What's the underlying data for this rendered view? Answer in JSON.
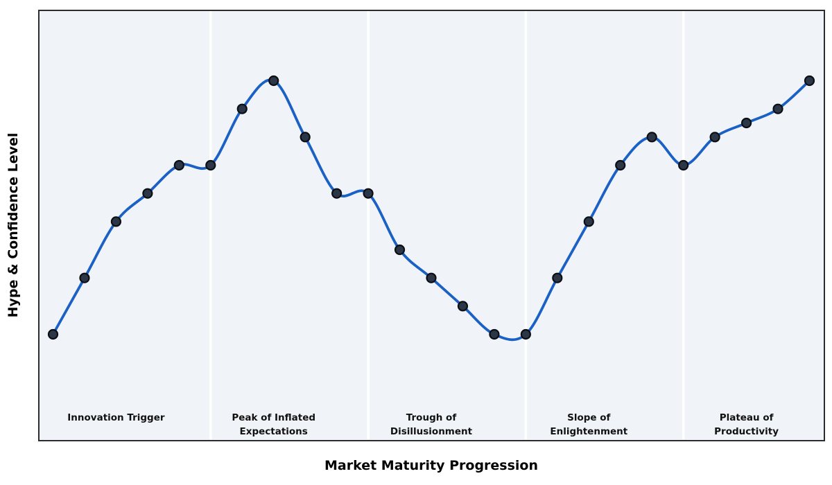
{
  "chart_data": {
    "type": "line",
    "title": "",
    "xlabel": "Market Maturity Progression",
    "ylabel": "Hype & Confidence Level",
    "x": [
      0,
      1,
      2,
      3,
      4,
      5,
      6,
      7,
      8,
      9,
      10,
      11,
      12,
      13,
      14,
      15,
      16,
      17,
      18,
      19,
      20,
      21,
      22,
      23,
      24
    ],
    "values": [
      20,
      40,
      60,
      70,
      80,
      80,
      100,
      110,
      90,
      70,
      70,
      50,
      40,
      30,
      20,
      20,
      40,
      60,
      80,
      90,
      80,
      90,
      95,
      100,
      110
    ],
    "series": [
      {
        "name": "hype-curve",
        "values": [
          20,
          40,
          60,
          70,
          80,
          80,
          100,
          110,
          90,
          70,
          70,
          50,
          40,
          30,
          20,
          20,
          40,
          60,
          80,
          90,
          80,
          90,
          95,
          100,
          110
        ]
      }
    ],
    "phases": [
      {
        "name": "innovation-trigger",
        "label_lines": [
          "Innovation Trigger"
        ],
        "start_index": 0,
        "end_index": 4
      },
      {
        "name": "peak-of-inflated-expectations",
        "label_lines": [
          "Peak of Inflated",
          "Expectations"
        ],
        "start_index": 5,
        "end_index": 9
      },
      {
        "name": "trough-of-disillusionment",
        "label_lines": [
          "Trough of",
          "Disillusionment"
        ],
        "start_index": 10,
        "end_index": 14
      },
      {
        "name": "slope-of-enlightenment",
        "label_lines": [
          "Slope of",
          "Enlightenment"
        ],
        "start_index": 15,
        "end_index": 19
      },
      {
        "name": "plateau-of-productivity",
        "label_lines": [
          "Plateau of",
          "Productivity"
        ],
        "start_index": 20,
        "end_index": 24
      }
    ],
    "phase_boundary_indices": [
      5,
      10,
      15,
      20
    ],
    "axes": {
      "x_ticks": [],
      "y_ticks": [],
      "grid": false,
      "legend": false,
      "value_range_estimate": [
        20,
        110
      ]
    },
    "style": {
      "line_color": "#1b60c4",
      "marker_fill": "#2b3647",
      "marker_stroke": "#0b0e13",
      "plot_background": "#f0f4f8",
      "phase_separator_color": "#ffffff",
      "plot_border_color": "#2a2c30",
      "text_color": "#111111",
      "page_background": "#ffffff"
    }
  }
}
